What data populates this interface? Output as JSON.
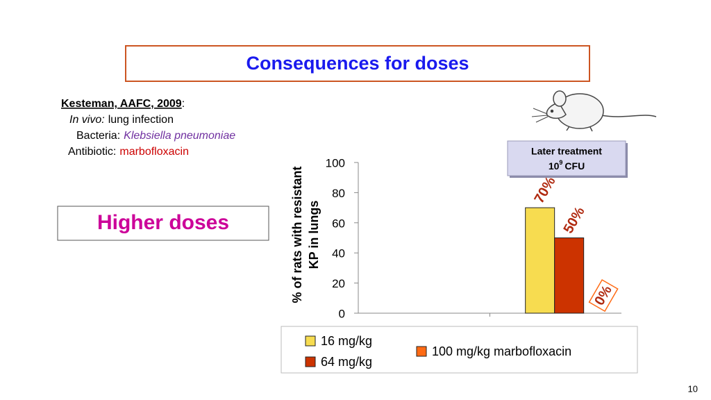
{
  "slide": {
    "title": "Consequences for doses",
    "reference": {
      "citation": "Kesteman, AAFC, 2009",
      "citation_end": ":",
      "model_label": "In vivo:",
      "model": "lung infection",
      "bacteria_label": "Bacteria:",
      "bacteria": "Klebsiella pneumoniae",
      "antibiotic_label": "Antibiotic:",
      "antibiotic": "marbofloxacin"
    },
    "highlight": "Higher doses",
    "page_number": 10
  },
  "chart_data": {
    "type": "bar",
    "ylabel": [
      "% of rats with resistant",
      "KP in lungs"
    ],
    "categories": [
      null,
      null
    ],
    "series": [
      {
        "name": "16 mg/kg",
        "color": "#f7dc50",
        "values": [
          0,
          70
        ],
        "value_labels": [
          null,
          "70%"
        ]
      },
      {
        "name": "64 mg/kg",
        "color": "#cc3300",
        "values": [
          0,
          50
        ],
        "value_labels": [
          null,
          "50%"
        ]
      },
      {
        "name": "100 mg/kg marbofloxacin",
        "color": "#ff6a13",
        "values": [
          0,
          0
        ],
        "value_labels": [
          null,
          "0%"
        ],
        "label_boxed": true
      }
    ],
    "ylim": [
      0,
      100
    ],
    "yticks": [
      0,
      20,
      40,
      60,
      80,
      100
    ],
    "grid": false,
    "annotation": {
      "line1": "Later treatment",
      "base": "10",
      "exponent": "9",
      "unit": "CFU"
    }
  }
}
